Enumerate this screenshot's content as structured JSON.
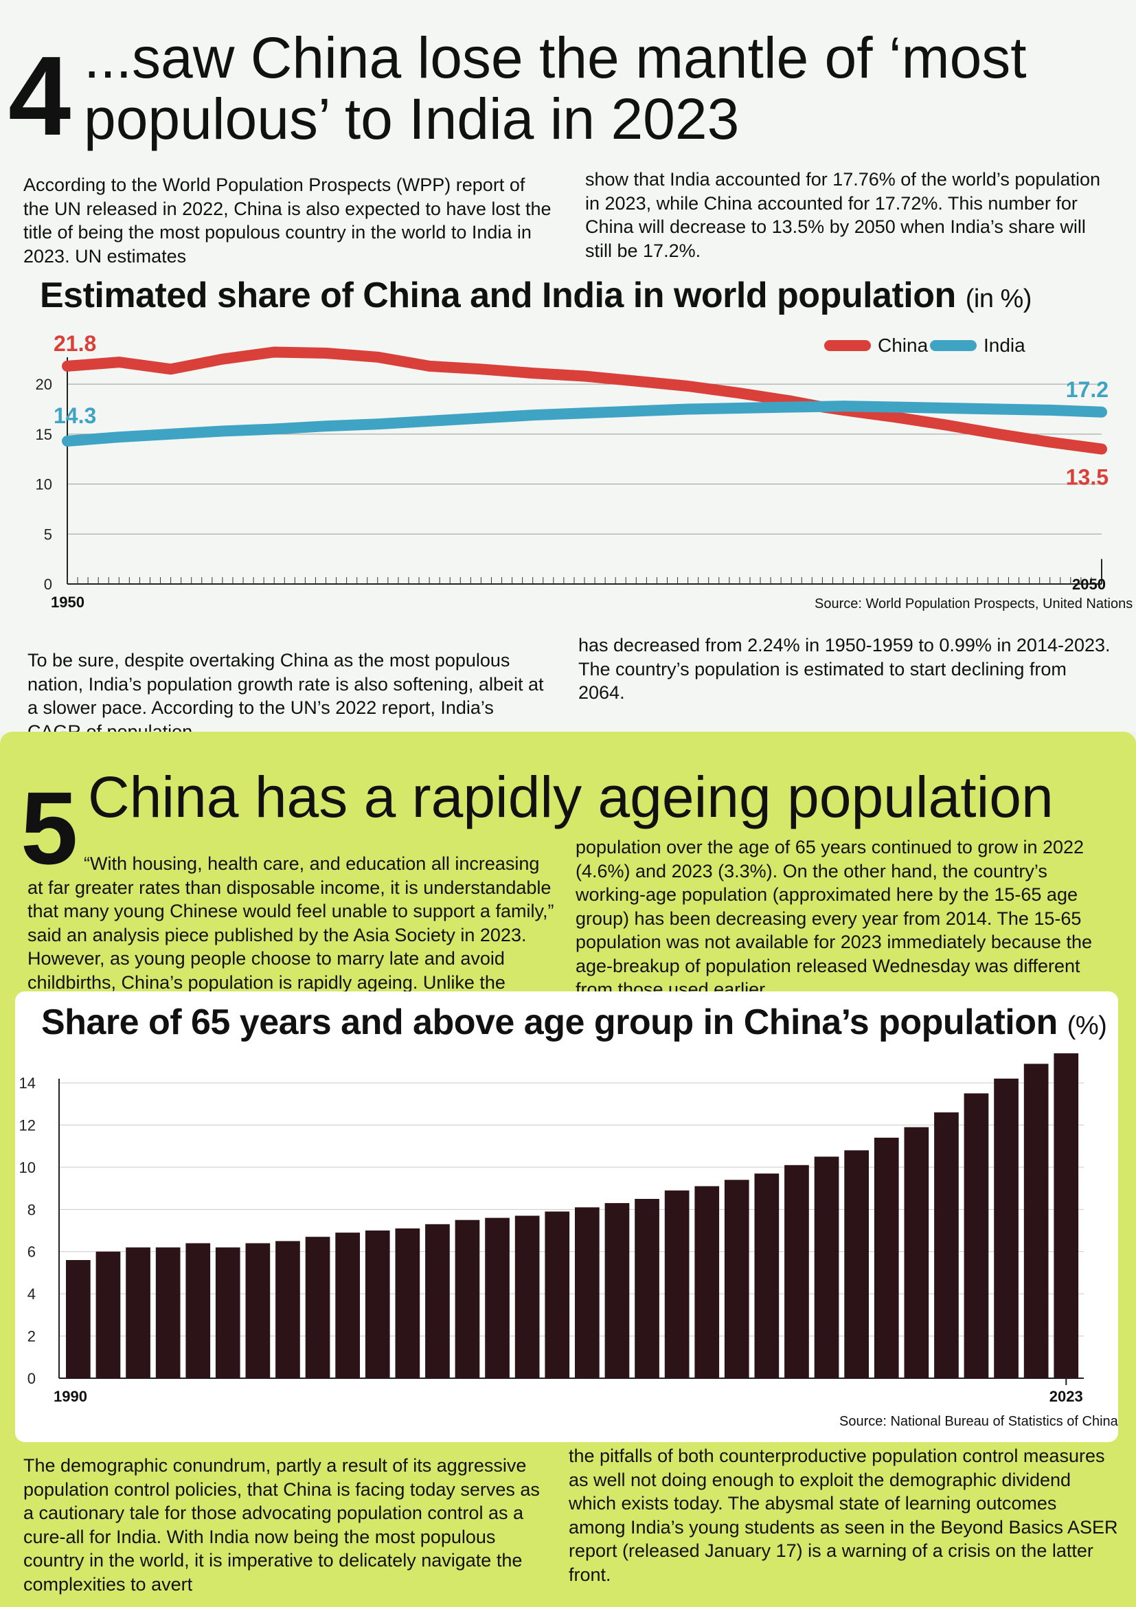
{
  "section4": {
    "number": "4",
    "headline_line1": "...saw China lose the mantle of ‘most",
    "headline_line2": "populous’ to India in 2023",
    "intro_left": "According to the World Population Prospects (WPP) report of the UN released in 2022, China is also expected to have lost the title of being the most populous country in the world to India in 2023. UN estimates",
    "intro_right": "show that India accounted for 17.76% of the world’s population in 2023, while China accounted for 17.72%. This number for China will decrease to 13.5% by 2050 when India’s share will still be 17.2%.",
    "chart_title": "Estimated share of China and India in world population",
    "chart_title_unit": "(in %)",
    "source": "Source: World Population Prospects, United Nations",
    "body_left": "To be sure, despite overtaking China as the most populous nation, India’s population growth rate is also softening, albeit at a slower pace. According to the UN’s 2022 report, India’s CAGR of population",
    "body_right": "has decreased from 2.24% in 1950-1959 to 0.99% in 2014-2023. The country’s population is estimated to start declining from 2064."
  },
  "section5": {
    "number": "5",
    "headline": "China has a rapidly ageing population",
    "intro_left": "“With housing, health care, and education all increasing at far greater rates than disposable income, it is understandable that many young Chinese would feel unable to support a family,” said an analysis piece published by the Asia Society in 2023. However, as young people choose to marry late and avoid childbirths, China’s population is rapidly ageing. Unlike the country’s total population, China’s",
    "intro_right": "population over the age of 65 years continued to grow in 2022 (4.6%) and 2023 (3.3%). On the other hand, the country’s working-age population (approximated here by the 15-65 age group) has been decreasing every year from 2014. The 15-65 population was not available for 2023 immediately because the age-breakup of population released Wednesday was different from those used earlier.",
    "chart_title": "Share of 65 years and above age group in China’s population",
    "chart_title_unit": "(%)",
    "source": "Source: National Bureau of Statistics of China",
    "body_left": "The demographic conundrum, partly a result of its aggressive population control policies, that China is facing today serves as a cautionary tale for those advocating population control as a cure-all for India. With India now being the most populous country in the world, it is imperative to delicately navigate the complexities to avert",
    "body_right": "the pitfalls of both counterproductive population control measures as well not doing enough to exploit the demographic dividend which exists today. The abysmal state of learning outcomes among India’s young students as seen in the Beyond Basics ASER report (released January 17) is a warning of a crisis on the latter front."
  },
  "chart_data": [
    {
      "type": "line",
      "title": "Estimated share of China and India in world population",
      "unit": "(in %)",
      "xlim": [
        1950,
        2050
      ],
      "ylim": [
        0,
        22
      ],
      "yticks": [
        0,
        5,
        10,
        15,
        20
      ],
      "xtick_labels": [
        "1950",
        "2050"
      ],
      "legend_position": "top-right",
      "grid": true,
      "series": [
        {
          "name": "China",
          "color": "#d9403a",
          "x": [
            1950,
            1955,
            1960,
            1965,
            1970,
            1975,
            1980,
            1985,
            1990,
            1995,
            2000,
            2005,
            2010,
            2015,
            2020,
            2023,
            2025,
            2030,
            2035,
            2040,
            2045,
            2050
          ],
          "values": [
            21.8,
            22.2,
            21.5,
            22.5,
            23.2,
            23.1,
            22.7,
            21.8,
            21.5,
            21.1,
            20.8,
            20.3,
            19.8,
            19.1,
            18.3,
            17.72,
            17.4,
            16.7,
            15.9,
            15.0,
            14.2,
            13.5
          ],
          "start_label": "21.8",
          "end_label": "13.5"
        },
        {
          "name": "India",
          "color": "#3fa3c4",
          "x": [
            1950,
            1955,
            1960,
            1965,
            1970,
            1975,
            1980,
            1985,
            1990,
            1995,
            2000,
            2005,
            2010,
            2015,
            2020,
            2023,
            2025,
            2030,
            2035,
            2040,
            2045,
            2050
          ],
          "values": [
            14.3,
            14.7,
            15.0,
            15.3,
            15.5,
            15.8,
            16.0,
            16.3,
            16.6,
            16.9,
            17.1,
            17.3,
            17.5,
            17.6,
            17.7,
            17.76,
            17.8,
            17.7,
            17.6,
            17.5,
            17.4,
            17.2
          ],
          "start_label": "14.3",
          "end_label": "17.2"
        }
      ]
    },
    {
      "type": "bar",
      "title": "Share of 65 years and above age group in China’s population",
      "unit": "(%)",
      "x": [
        1990,
        1991,
        1992,
        1993,
        1994,
        1995,
        1996,
        1997,
        1998,
        1999,
        2000,
        2001,
        2002,
        2003,
        2004,
        2005,
        2006,
        2007,
        2008,
        2009,
        2010,
        2011,
        2012,
        2013,
        2014,
        2015,
        2016,
        2017,
        2018,
        2019,
        2020,
        2021,
        2022,
        2023
      ],
      "values": [
        5.6,
        6.0,
        6.2,
        6.2,
        6.4,
        6.2,
        6.4,
        6.5,
        6.7,
        6.9,
        7.0,
        7.1,
        7.3,
        7.5,
        7.6,
        7.7,
        7.9,
        8.1,
        8.3,
        8.5,
        8.9,
        9.1,
        9.4,
        9.7,
        10.1,
        10.5,
        10.8,
        11.4,
        11.9,
        12.6,
        13.5,
        14.2,
        14.9,
        15.4
      ],
      "ylim": [
        0,
        15.5
      ],
      "yticks": [
        0,
        2,
        4,
        6,
        8,
        10,
        12,
        14
      ],
      "xtick_labels": [
        "1990",
        "2023"
      ],
      "color": "#2b1317",
      "grid": true
    }
  ]
}
